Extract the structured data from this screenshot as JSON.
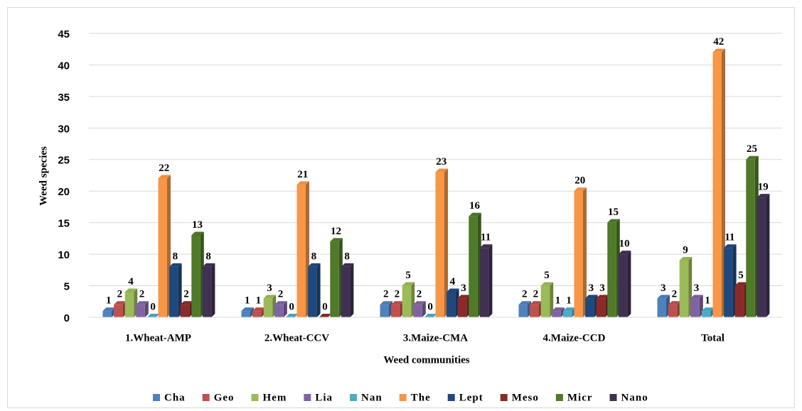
{
  "chart_data": {
    "type": "bar",
    "xlabel": "Weed communities",
    "ylabel": "Weed species",
    "categories": [
      "1.Wheat-AMP",
      "2.Wheat-CCV",
      "3.Maize-CMA",
      "4.Maize-CCD",
      "Total"
    ],
    "series": [
      {
        "name": "Cha",
        "color": "#4f81bd",
        "values": [
          1,
          1,
          2,
          2,
          3
        ]
      },
      {
        "name": "Geo",
        "color": "#c0504d",
        "values": [
          2,
          1,
          2,
          2,
          2
        ]
      },
      {
        "name": "Hem",
        "color": "#9bbb59",
        "values": [
          4,
          3,
          5,
          5,
          9
        ]
      },
      {
        "name": "Lia",
        "color": "#8064a2",
        "values": [
          2,
          2,
          2,
          1,
          3
        ]
      },
      {
        "name": "Nan",
        "color": "#4bacc6",
        "values": [
          0,
          0,
          0,
          1,
          1
        ]
      },
      {
        "name": "The",
        "color": "#f79646",
        "values": [
          22,
          21,
          23,
          20,
          42
        ]
      },
      {
        "name": "Lept",
        "color": "#1f497d",
        "values": [
          8,
          8,
          4,
          3,
          11
        ]
      },
      {
        "name": "Meso",
        "color": "#8b2a2a",
        "values": [
          2,
          0,
          3,
          3,
          5
        ]
      },
      {
        "name": "Micr",
        "color": "#4f7a28",
        "values": [
          13,
          12,
          16,
          15,
          25
        ]
      },
      {
        "name": "Nano",
        "color": "#403152",
        "values": [
          8,
          8,
          11,
          10,
          19
        ]
      }
    ],
    "ylim": [
      0,
      45
    ],
    "yticks": [
      0,
      5,
      10,
      15,
      20,
      25,
      30,
      35,
      40,
      45
    ],
    "grid": true,
    "legend": "bottom"
  }
}
